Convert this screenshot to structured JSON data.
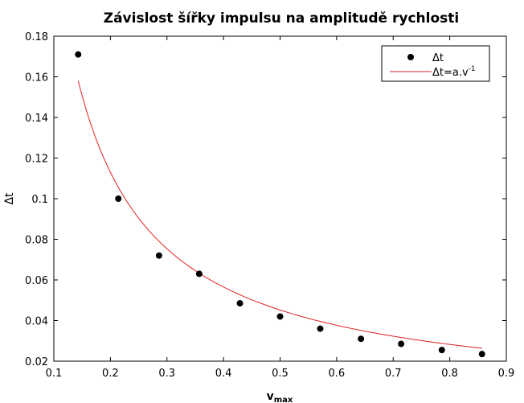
{
  "chart_data": {
    "type": "scatter",
    "title": "Závislost šířky impulsu na amplitudě rychlosti",
    "xlabel": "v",
    "xlabel_sub": "max",
    "ylabel": "Δt",
    "xlim": [
      0.1,
      0.9
    ],
    "ylim": [
      0.02,
      0.18
    ],
    "xticks": [
      "0.1",
      "0.2",
      "0.3",
      "0.4",
      "0.5",
      "0.6",
      "0.7",
      "0.8",
      "0.9"
    ],
    "yticks": [
      "0.02",
      "0.04",
      "0.06",
      "0.08",
      "0.1",
      "0.12",
      "0.14",
      "0.16",
      "0.18"
    ],
    "grid": false,
    "legend_position": "top-right",
    "series": [
      {
        "name": "Δt",
        "kind": "points",
        "color": "#000000",
        "x": [
          0.143,
          0.214,
          0.286,
          0.357,
          0.429,
          0.5,
          0.571,
          0.643,
          0.714,
          0.786,
          0.857
        ],
        "y": [
          0.171,
          0.1,
          0.072,
          0.063,
          0.0485,
          0.042,
          0.036,
          0.031,
          0.0285,
          0.0255,
          0.0235
        ]
      },
      {
        "name": "Δt=a.v",
        "name_sup": "-1",
        "kind": "fit",
        "color": "#e02020",
        "a": 0.0226,
        "x_range": [
          0.143,
          0.857
        ]
      }
    ]
  }
}
